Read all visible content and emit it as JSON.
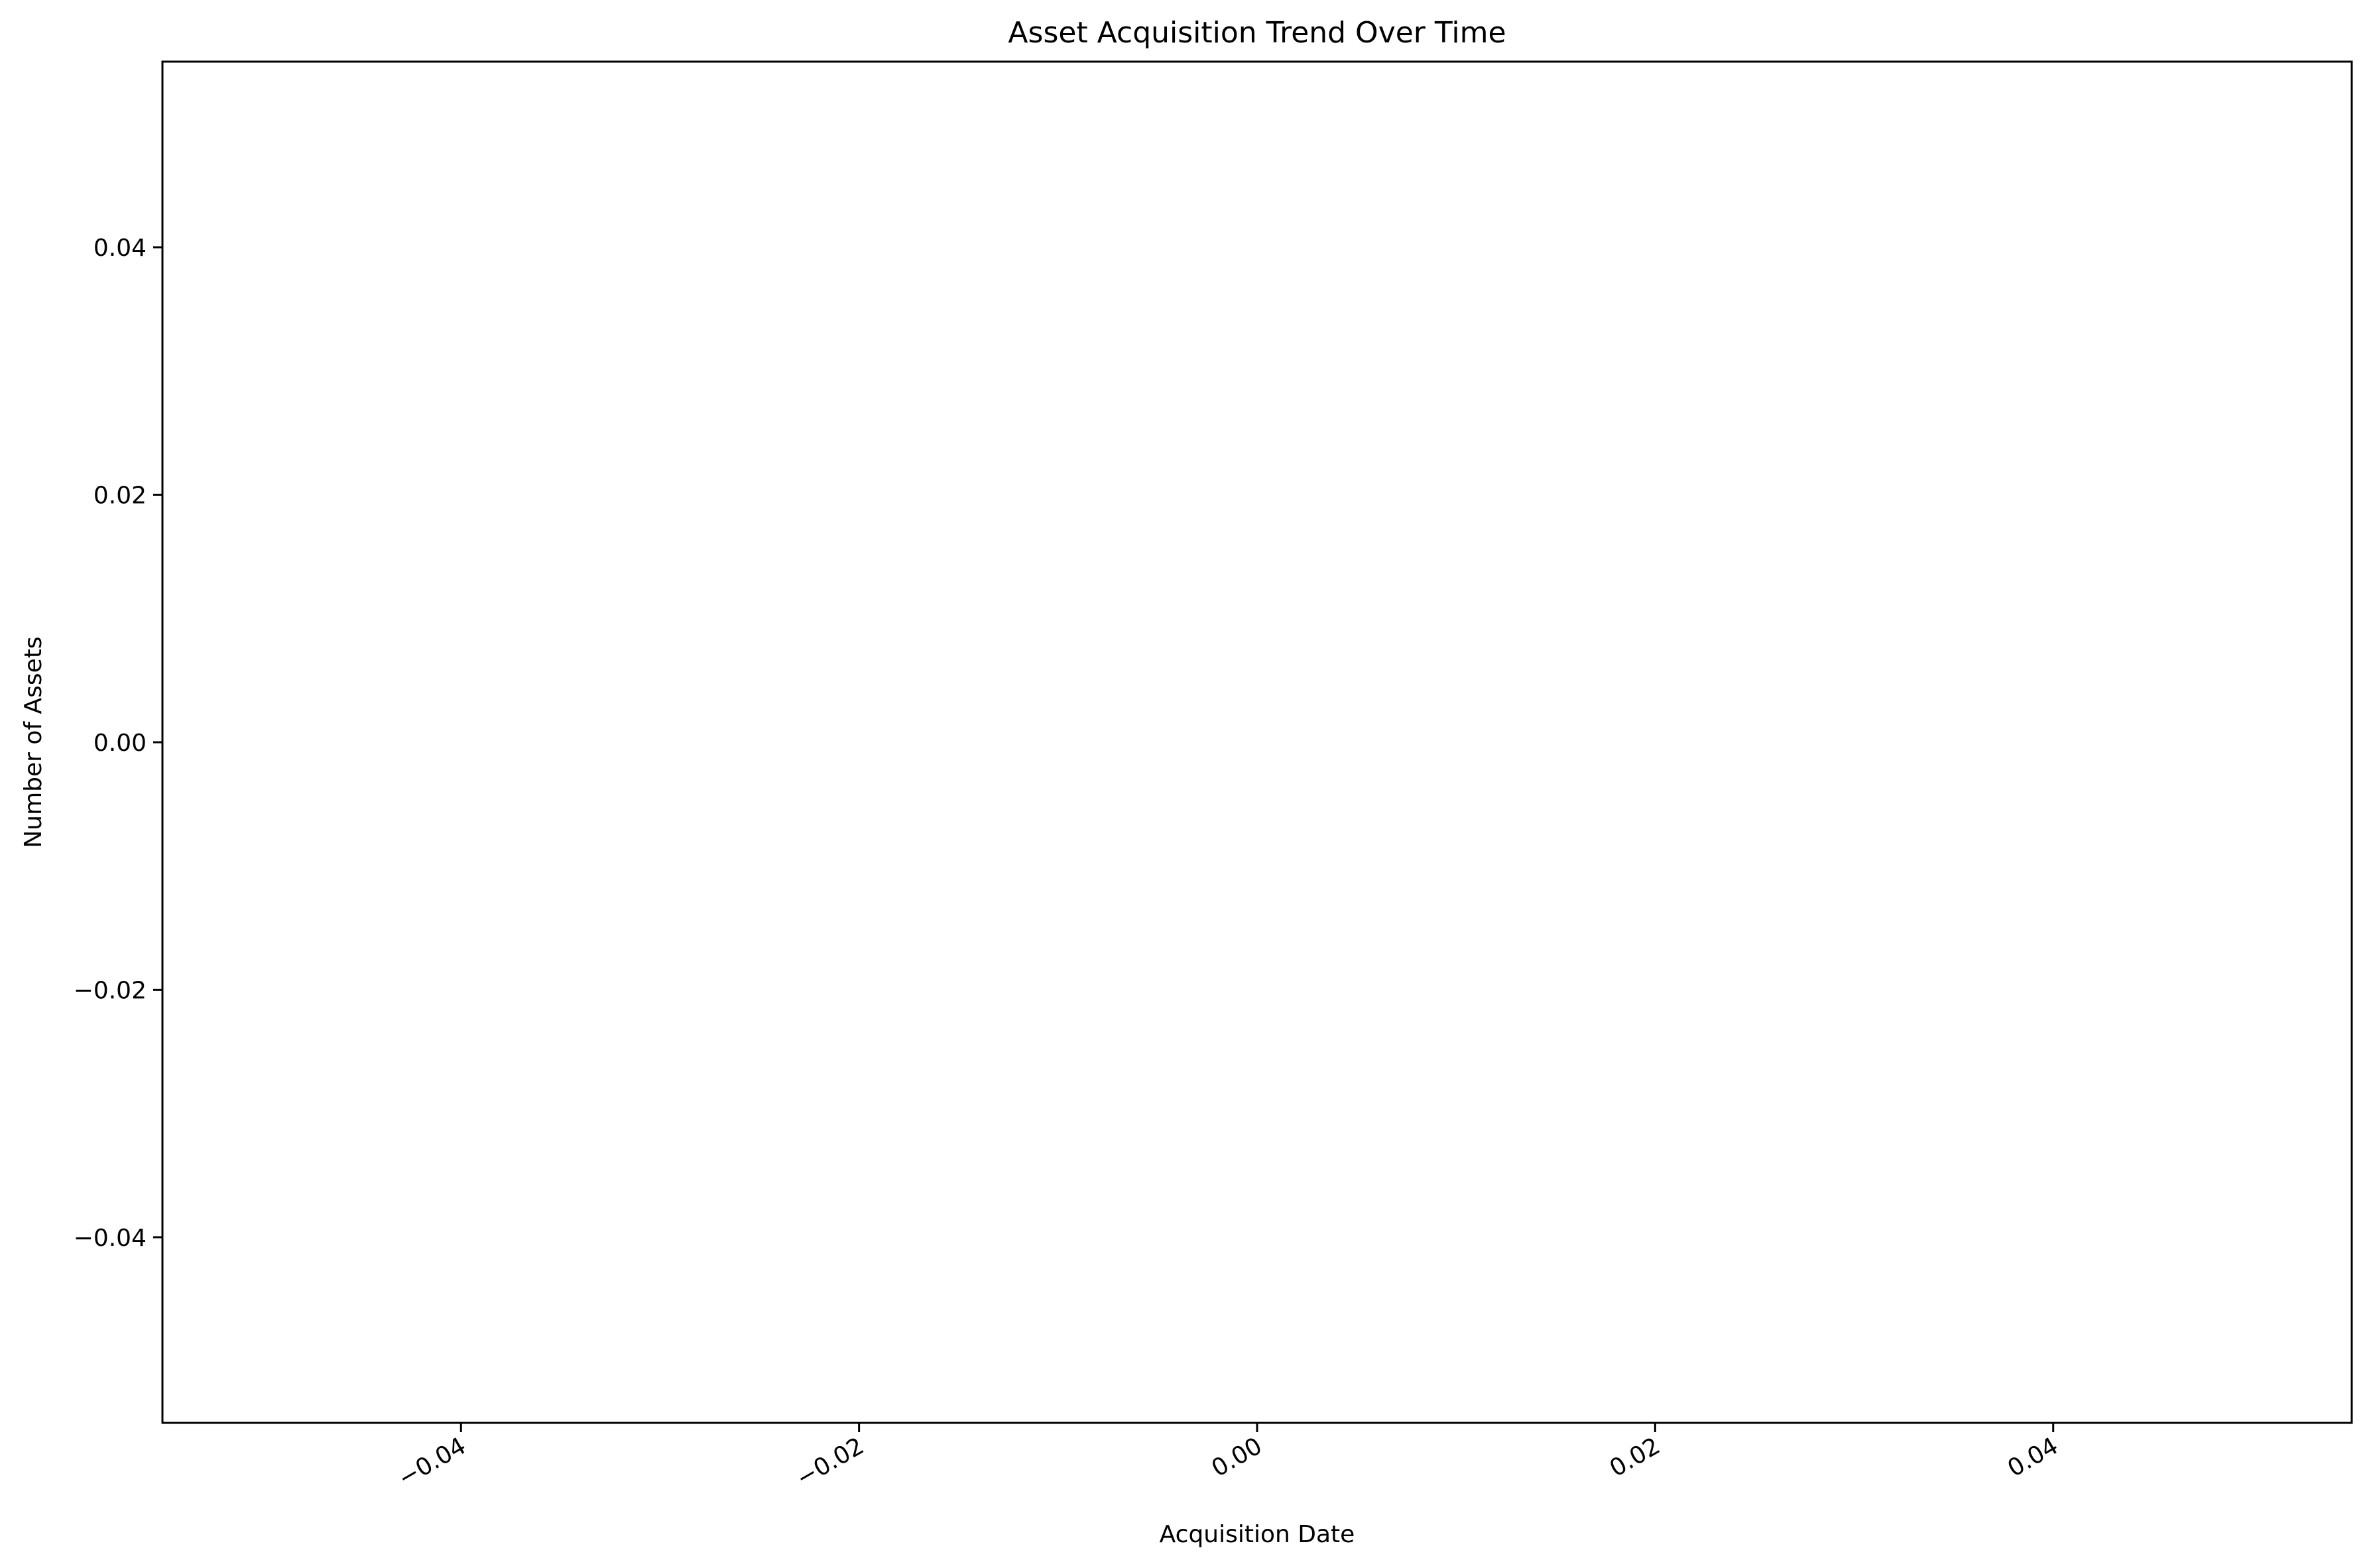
{
  "chart_data": {
    "type": "line",
    "title": "Asset Acquisition Trend Over Time",
    "xlabel": "Acquisition Date",
    "ylabel": "Number of Assets",
    "series": [],
    "xlim": [
      -0.055,
      0.055
    ],
    "ylim": [
      -0.055,
      0.055
    ],
    "x_ticks": [
      -0.04,
      -0.02,
      0.0,
      0.02,
      0.04
    ],
    "x_tick_labels": [
      "−0.04",
      "−0.02",
      "0.00",
      "0.02",
      "0.04"
    ],
    "y_ticks": [
      -0.04,
      -0.02,
      0.0,
      0.02,
      0.04
    ],
    "y_tick_labels": [
      "−0.04",
      "−0.02",
      "0.00",
      "0.02",
      "0.04"
    ],
    "grid": false,
    "legend": "none",
    "colors": {
      "axes": "#000000",
      "background": "#ffffff"
    }
  }
}
